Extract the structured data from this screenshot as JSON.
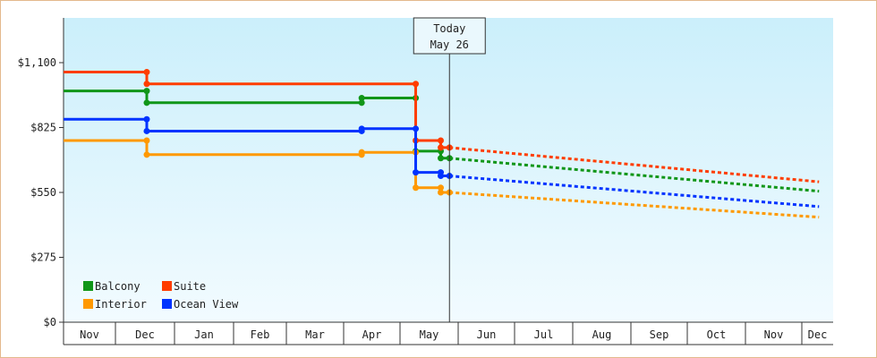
{
  "chart_data": {
    "type": "line",
    "title": "",
    "xlabel": "",
    "ylabel": "",
    "ylim": [
      0,
      1100
    ],
    "y_ticks": [
      {
        "value": 0,
        "label": "$0"
      },
      {
        "value": 275,
        "label": "$275"
      },
      {
        "value": 550,
        "label": "$550"
      },
      {
        "value": 825,
        "label": "$825"
      },
      {
        "value": 1100,
        "label": "$1,100"
      }
    ],
    "x_months": [
      "Nov",
      "Dec",
      "Jan",
      "Feb",
      "Mar",
      "Apr",
      "May",
      "Jun",
      "Jul",
      "Aug",
      "Sep",
      "Oct",
      "Nov",
      "Dec"
    ],
    "x_unit": "month index (0 = start of Nov)",
    "today": {
      "line1": "Today",
      "line2": "May 26",
      "x": 6.85
    },
    "gridlines": false,
    "legend_position": "bottom-left",
    "series": [
      {
        "name": "Balcony",
        "color": "#109618",
        "actual": [
          [
            0,
            980
          ],
          [
            1.53,
            980
          ],
          [
            1.53,
            930
          ],
          [
            5.32,
            930
          ],
          [
            5.32,
            950
          ],
          [
            6.27,
            950
          ],
          [
            6.27,
            725
          ],
          [
            6.7,
            725
          ],
          [
            6.7,
            695
          ],
          [
            6.85,
            695
          ]
        ],
        "forecast": [
          [
            6.85,
            695
          ],
          [
            13.55,
            555
          ]
        ]
      },
      {
        "name": "Suite",
        "color": "#ff3d00",
        "actual": [
          [
            0,
            1060
          ],
          [
            1.53,
            1060
          ],
          [
            1.53,
            1010
          ],
          [
            6.27,
            1010
          ],
          [
            6.27,
            770
          ],
          [
            6.7,
            770
          ],
          [
            6.7,
            740
          ],
          [
            6.85,
            740
          ]
        ],
        "forecast": [
          [
            6.85,
            740
          ],
          [
            13.55,
            595
          ]
        ]
      },
      {
        "name": "Interior",
        "color": "#ff9900",
        "actual": [
          [
            0,
            770
          ],
          [
            1.53,
            770
          ],
          [
            1.53,
            710
          ],
          [
            5.32,
            710
          ],
          [
            5.32,
            720
          ],
          [
            6.27,
            720
          ],
          [
            6.27,
            570
          ],
          [
            6.7,
            570
          ],
          [
            6.7,
            550
          ],
          [
            6.85,
            550
          ]
        ],
        "forecast": [
          [
            6.85,
            550
          ],
          [
            13.55,
            445
          ]
        ]
      },
      {
        "name": "Ocean View",
        "color": "#0033ff",
        "actual": [
          [
            0,
            860
          ],
          [
            1.53,
            860
          ],
          [
            1.53,
            810
          ],
          [
            5.32,
            810
          ],
          [
            5.32,
            820
          ],
          [
            6.27,
            820
          ],
          [
            6.27,
            635
          ],
          [
            6.7,
            635
          ],
          [
            6.7,
            620
          ],
          [
            6.85,
            620
          ]
        ],
        "forecast": [
          [
            6.85,
            620
          ],
          [
            13.55,
            490
          ]
        ]
      }
    ]
  }
}
